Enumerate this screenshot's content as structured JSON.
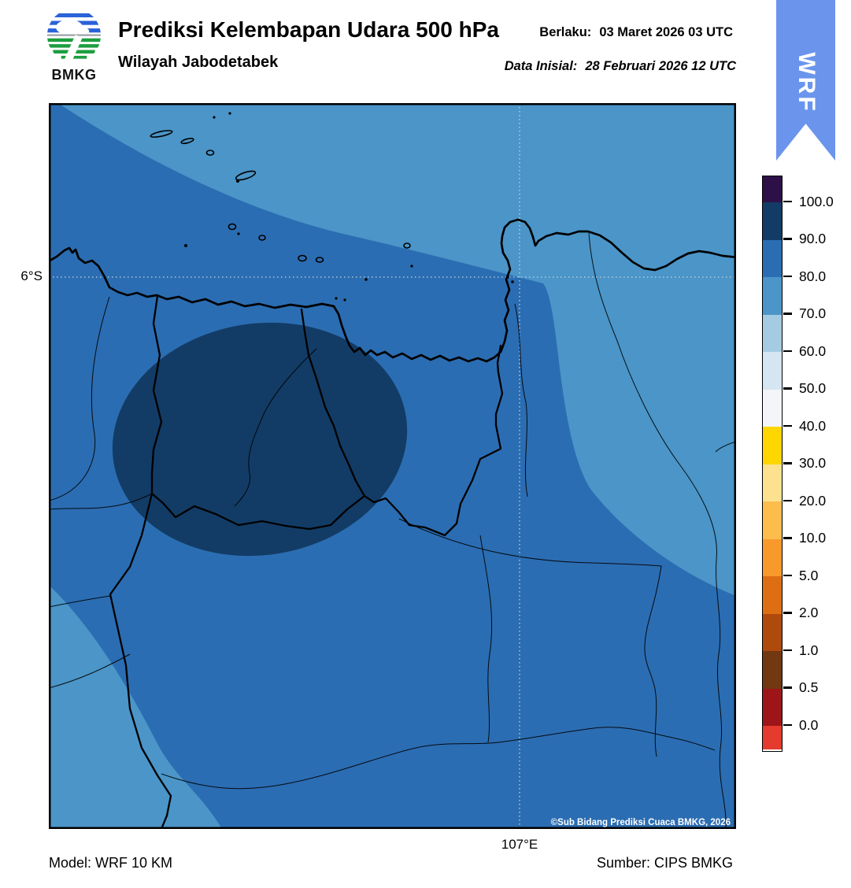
{
  "header": {
    "logo_text": "BMKG",
    "title": "Prediksi Kelembapan Udara 500 hPa",
    "subtitle": "Wilayah Jabodetabek",
    "valid_label": "Berlaku:",
    "valid_value": "03 Maret 2026 03 UTC",
    "initial_label": "Data Inisial:",
    "initial_value": "28 Februari 2026 12 UTC",
    "ribbon_text": "WRF"
  },
  "map": {
    "lat_tick": "6°S",
    "lon_tick": "107°E",
    "copyright": "©Sub Bidang Prediksi Cuaca BMKG, 2026"
  },
  "footer": {
    "model": "Model: WRF 10 KM",
    "source": "Sumber: CIPS BMKG"
  },
  "colorbar": {
    "tick_labels": [
      "100.0",
      "90.0",
      "80.0",
      "70.0",
      "60.0",
      "50.0",
      "40.0",
      "30.0",
      "20.0",
      "10.0",
      "5.0",
      "2.0",
      "1.0",
      "0.5",
      "0.0"
    ],
    "segment_colors_top_to_bottom": [
      "#2e1049",
      "#123c66",
      "#2b6db2",
      "#4b95c8",
      "#a5cbe2",
      "#d6e5f2",
      "#f3f5f8",
      "#ffd600",
      "#fce28e",
      "#fcbd4c",
      "#f8992c",
      "#dd6e14",
      "#ae4a0c",
      "#713811",
      "#9e1519",
      "#e43b2e"
    ]
  },
  "palette": {
    "shade_70_80": "#4b95c8",
    "shade_80_90": "#2b6db2",
    "shade_90_100": "#123c66",
    "ribbon_blue": "#6b95ec",
    "line_black": "#000000",
    "gridline": "#cdd9e0",
    "copyright_white": "#ffffff"
  },
  "chart_data": {
    "type": "filled_contour_map",
    "variable": "Kelembapan Udara (relative humidity) at 500 hPa, percent",
    "region": "Jabodetabek (Greater Jakarta), Java, Indonesia",
    "valid_time": "03 Maret 2026 03 UTC",
    "initial_time": "28 Februari 2026 12 UTC",
    "model": "WRF 10 KM",
    "source": "CIPS BMKG",
    "colorbar_levels": [
      0.0,
      0.5,
      1.0,
      2.0,
      5.0,
      10.0,
      20.0,
      30.0,
      40.0,
      50.0,
      60.0,
      70.0,
      80.0,
      90.0,
      100.0
    ],
    "gridlines": {
      "latitude": "6°S",
      "longitude": "107°E"
    },
    "depicted_field": {
      "most_of_domain_percent": "80-90",
      "core_blob_center_west_percent": "90-100",
      "offshore_north_and_east_band_percent": "70-80",
      "southwest_corner_percent": "70-80"
    }
  }
}
